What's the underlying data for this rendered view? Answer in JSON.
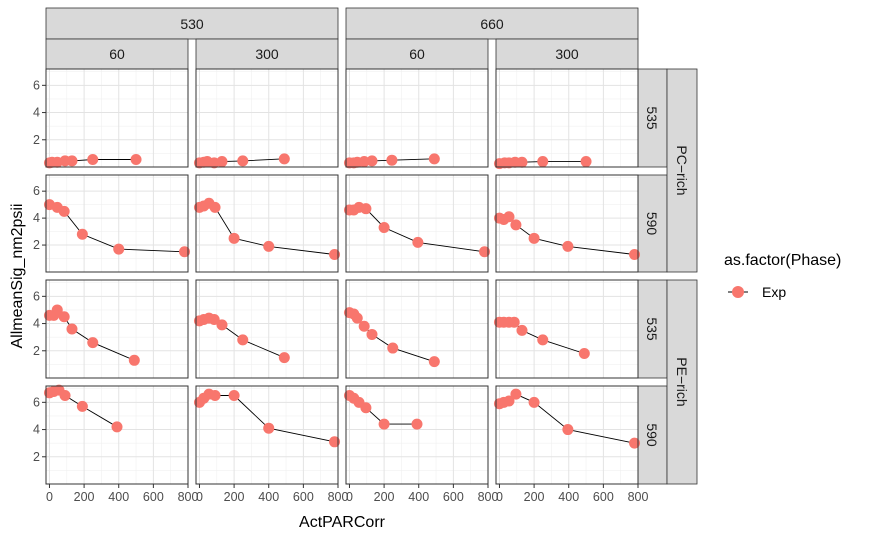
{
  "chart_data": {
    "type": "line",
    "xlabel": "ActPARCorr",
    "ylabel": "AllmeanSig_nm2psii",
    "xlim": [
      -20,
      800
    ],
    "ylim": [
      0,
      7.2
    ],
    "x_ticks": [
      0,
      200,
      400,
      600,
      800
    ],
    "y_ticks": [
      2,
      4,
      6
    ],
    "grid": true,
    "legend": {
      "title": "as.factor(Phase)",
      "entries": [
        "Exp"
      ],
      "position": "right"
    },
    "colors": {
      "point": "#F8766D",
      "line": "#000000",
      "strip_bg": "#D9D9D9",
      "strip_border": "#333333"
    },
    "col_top_strips": [
      "530",
      "660"
    ],
    "col_sub_strips": [
      "60",
      "300",
      "60",
      "300"
    ],
    "row_inner_strips": [
      "535",
      "590",
      "535",
      "590"
    ],
    "row_outer_strips": [
      "PC−rich",
      "PE−rich"
    ],
    "panels": [
      [
        {
          "x": [
            0,
            15,
            45,
            90,
            130,
            250,
            500
          ],
          "y": [
            0.3,
            0.35,
            0.35,
            0.45,
            0.45,
            0.55,
            0.55
          ]
        },
        {
          "x": [
            0,
            25,
            45,
            85,
            130,
            250,
            490
          ],
          "y": [
            0.3,
            0.35,
            0.4,
            0.3,
            0.4,
            0.45,
            0.6
          ]
        },
        {
          "x": [
            0,
            25,
            45,
            85,
            130,
            245,
            490
          ],
          "y": [
            0.3,
            0.3,
            0.35,
            0.4,
            0.45,
            0.5,
            0.6
          ]
        },
        {
          "x": [
            0,
            30,
            55,
            90,
            130,
            250,
            500
          ],
          "y": [
            0.25,
            0.3,
            0.3,
            0.35,
            0.35,
            0.4,
            0.4
          ]
        }
      ],
      [
        {
          "x": [
            0,
            45,
            85,
            190,
            400,
            780
          ],
          "y": [
            5.0,
            4.8,
            4.5,
            2.8,
            1.7,
            1.5
          ]
        },
        {
          "x": [
            0,
            25,
            55,
            90,
            200,
            400,
            780
          ],
          "y": [
            4.8,
            4.9,
            5.1,
            4.8,
            2.5,
            1.9,
            1.3
          ]
        },
        {
          "x": [
            0,
            25,
            55,
            95,
            200,
            395,
            780
          ],
          "y": [
            4.6,
            4.6,
            4.8,
            4.7,
            3.3,
            2.2,
            1.5
          ]
        },
        {
          "x": [
            0,
            25,
            55,
            95,
            200,
            395,
            780
          ],
          "y": [
            4.0,
            3.9,
            4.1,
            3.5,
            2.5,
            1.9,
            1.3
          ]
        }
      ],
      [
        {
          "x": [
            0,
            25,
            45,
            85,
            130,
            250,
            490
          ],
          "y": [
            4.6,
            4.6,
            5.0,
            4.5,
            3.6,
            2.6,
            1.3
          ]
        },
        {
          "x": [
            0,
            25,
            55,
            85,
            130,
            250,
            490
          ],
          "y": [
            4.2,
            4.3,
            4.4,
            4.3,
            3.9,
            2.8,
            1.5
          ]
        },
        {
          "x": [
            0,
            25,
            45,
            85,
            130,
            250,
            490
          ],
          "y": [
            4.8,
            4.7,
            4.4,
            3.8,
            3.2,
            2.2,
            1.2
          ]
        },
        {
          "x": [
            0,
            25,
            55,
            85,
            130,
            250,
            490
          ],
          "y": [
            4.1,
            4.1,
            4.1,
            4.1,
            3.5,
            2.8,
            1.8
          ]
        }
      ],
      [
        {
          "x": [
            0,
            25,
            55,
            90,
            190,
            390
          ],
          "y": [
            6.7,
            6.8,
            6.9,
            6.5,
            5.7,
            4.2
          ]
        },
        {
          "x": [
            0,
            25,
            55,
            90,
            200,
            400,
            780
          ],
          "y": [
            6.0,
            6.3,
            6.6,
            6.5,
            6.5,
            4.1,
            3.1
          ]
        },
        {
          "x": [
            0,
            25,
            55,
            95,
            200,
            390
          ],
          "y": [
            6.5,
            6.3,
            6.0,
            5.6,
            4.4,
            4.4
          ]
        },
        {
          "x": [
            0,
            25,
            55,
            95,
            200,
            395,
            780
          ],
          "y": [
            5.9,
            6.0,
            6.1,
            6.6,
            6.0,
            4.0,
            3.0
          ]
        }
      ]
    ]
  }
}
